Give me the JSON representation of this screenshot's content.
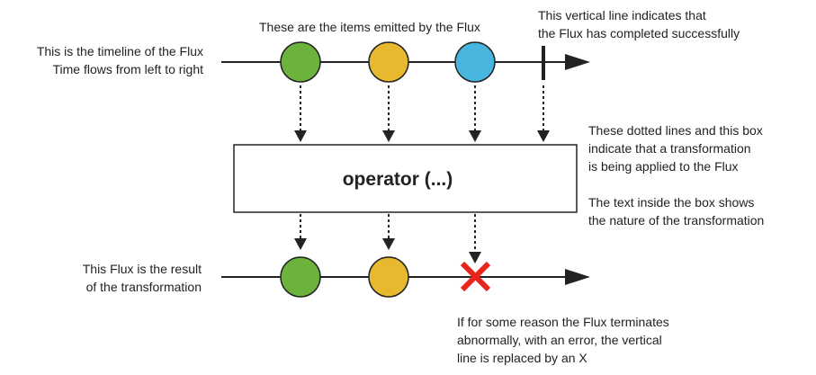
{
  "labels": {
    "top_timeline_line1": "This is the timeline of the Flux",
    "top_timeline_line2": "Time flows from left to right",
    "items_emitted": "These are the items emitted by the Flux",
    "completion_line1": "This vertical line indicates that",
    "completion_line2": "the Flux has completed successfully",
    "transform_line1": "These dotted lines and this box",
    "transform_line2": "indicate that a transformation",
    "transform_line3": "is being applied to the Flux",
    "box_text_line1": "The text inside the box shows",
    "box_text_line2": "the nature of the transformation",
    "result_line1": "This Flux is the result",
    "result_line2": "of the transformation",
    "error_line1": "If for some reason the Flux terminates",
    "error_line2": "abnormally, with an error, the vertical",
    "error_line3": "line is replaced by an X"
  },
  "operator": {
    "text": "operator (...)"
  },
  "colors": {
    "green": "#6cb33e",
    "yellow": "#e8b92f",
    "blue": "#47b5de",
    "error_red": "#e8241b",
    "line": "#222222"
  }
}
